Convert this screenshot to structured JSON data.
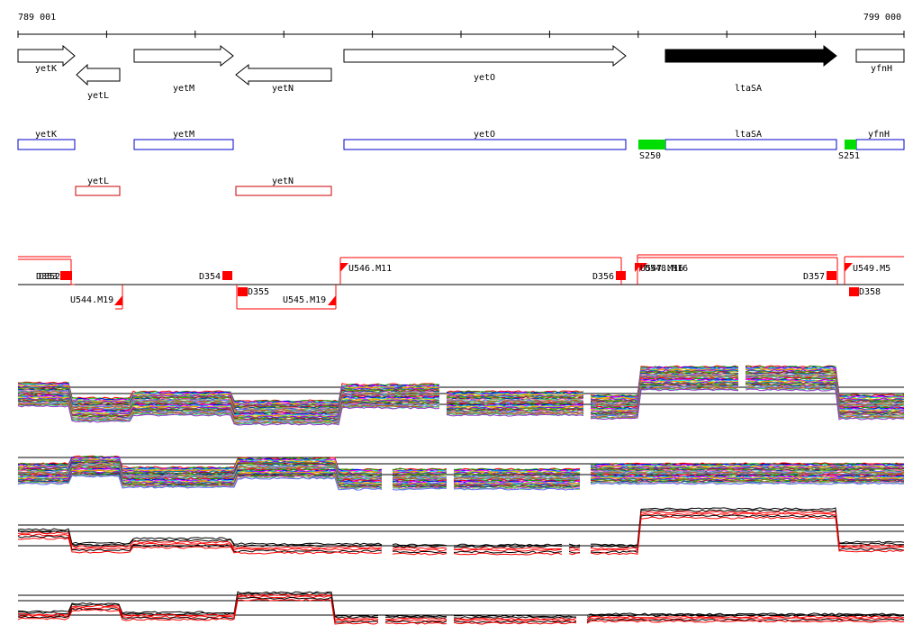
{
  "coordinates": {
    "start": "789 001",
    "end": "799 000"
  },
  "genes": [
    {
      "name": "yetK",
      "strand": "+"
    },
    {
      "name": "yetL",
      "strand": "-"
    },
    {
      "name": "yetM",
      "strand": "+"
    },
    {
      "name": "yetN",
      "strand": "-"
    },
    {
      "name": "yetO",
      "strand": "+"
    },
    {
      "name": "ltaSA",
      "strand": "+",
      "highlighted": true
    },
    {
      "name": "yfnH",
      "strand": "+"
    }
  ],
  "annotation_plus": [
    "yetK",
    "yetM",
    "yetO",
    "ltaSA",
    "yfnH"
  ],
  "annotation_minus": [
    "yetL",
    "yetN"
  ],
  "sigma_sites": [
    "S250",
    "S251"
  ],
  "feature_labels": {
    "d352": "D352",
    "d353": "D353",
    "d354": "D354",
    "d355": "D355",
    "d356": "D356",
    "d357": "D357",
    "d358": "D358",
    "u544": "U544.M19",
    "u545": "U545.M19",
    "u546": "U546.M11",
    "u547": "U547.M16",
    "u548": "U548.M16",
    "u549": "U549.M5"
  },
  "colors": {
    "plus_annotation": "#0000cc",
    "minus_annotation": "#cc0000",
    "sigma_site": "#00dd00",
    "feature": "#ff0000",
    "highlight_gene": "#000000"
  }
}
